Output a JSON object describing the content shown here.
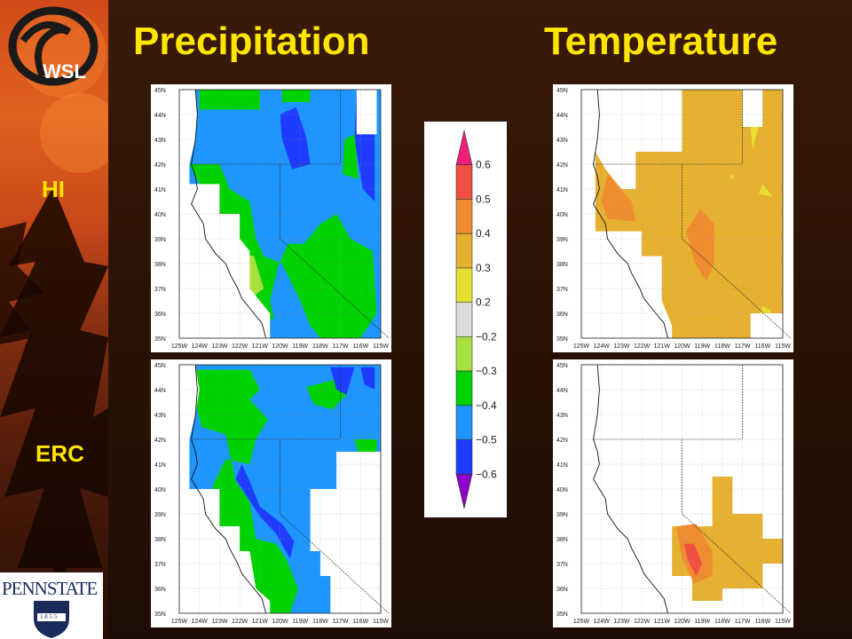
{
  "titles": {
    "left": "Precipitation",
    "right": "Temperature"
  },
  "rows": {
    "top": "HI",
    "bottom": "ERC"
  },
  "logos": {
    "wsl": "WSL",
    "pennstate": "PENNSTATE",
    "year": "1 8 5 5"
  },
  "map": {
    "lat_labels": [
      "45N",
      "44N",
      "43N",
      "42N",
      "41N",
      "40N",
      "39N",
      "38N",
      "37N",
      "36N",
      "35N"
    ],
    "lon_labels": [
      "125W",
      "124W",
      "123W",
      "122W",
      "121W",
      "120W",
      "119W",
      "118W",
      "117W",
      "116W",
      "115W"
    ]
  },
  "legend": {
    "labels": [
      "0.6",
      "0.5",
      "0.4",
      "0.3",
      "0.2",
      "−0.2",
      "−0.3",
      "−0.4",
      "−0.5",
      "−0.6"
    ],
    "colors": [
      "#f0207a",
      "#f05040",
      "#f08c30",
      "#e6b030",
      "#e8e030",
      "#dcdcdc",
      "#a8e040",
      "#00d200",
      "#1e96ff",
      "#1e3cff",
      "#8c00c8"
    ]
  }
}
